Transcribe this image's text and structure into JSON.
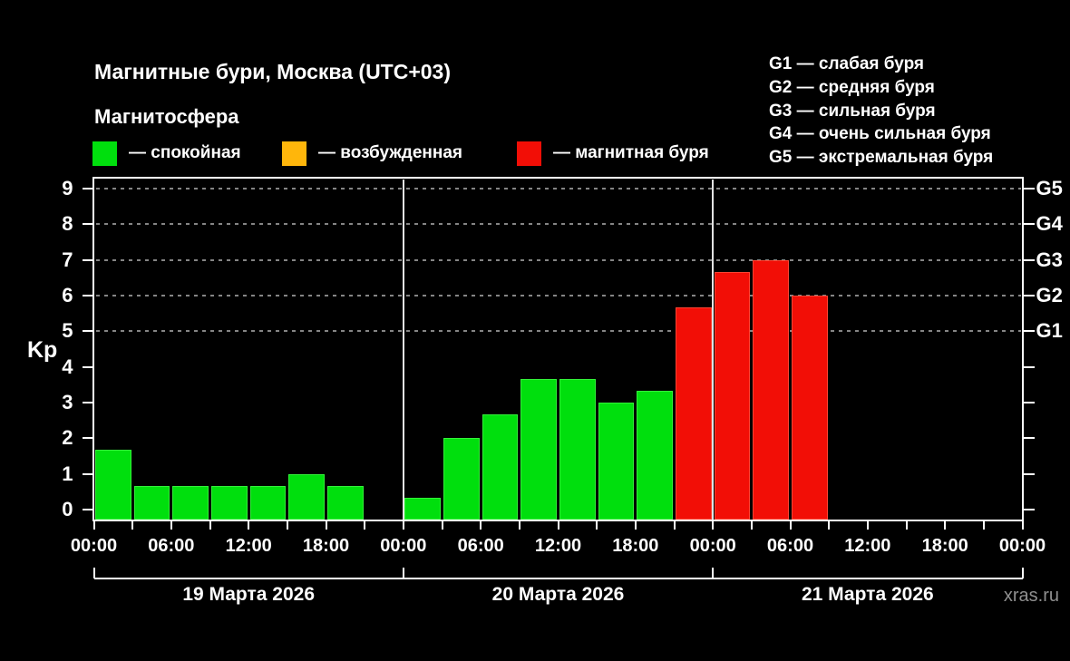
{
  "header": {
    "title": "Магнитные бури, Москва (UTC+03)",
    "subtitle": "Магнитосфера",
    "legend": [
      {
        "name": "quiet",
        "label": "— спокойная",
        "color": "#00DF0D"
      },
      {
        "name": "excited",
        "label": "— возбужденная",
        "color": "#FFB60B"
      },
      {
        "name": "storm",
        "label": "— магнитная буря",
        "color": "#F20E06"
      }
    ],
    "g_scale_legend": [
      "G1 — слабая буря",
      "G2 — средняя буря",
      "G3 — сильная буря",
      "G4 — очень сильная буря",
      "G5 — экстремальная буря"
    ]
  },
  "watermark": "xras.ru",
  "chart_data": {
    "type": "bar",
    "title": "Магнитные бури, Москва (UTC+03)",
    "ylabel": "Kp",
    "ylim": [
      0,
      9
    ],
    "yticks": [
      0,
      1,
      2,
      3,
      4,
      5,
      6,
      7,
      8,
      9
    ],
    "gridlines_at": [
      5,
      6,
      7,
      8,
      9
    ],
    "grid": "dashed horizontal at storm levels only",
    "legend_position": "top",
    "right_axis": [
      {
        "label": "G1",
        "kp": 5
      },
      {
        "label": "G2",
        "kp": 6
      },
      {
        "label": "G3",
        "kp": 7
      },
      {
        "label": "G4",
        "kp": 8
      },
      {
        "label": "G5",
        "kp": 9
      }
    ],
    "x_tick_labels_6h": [
      "00:00",
      "06:00",
      "12:00",
      "18:00",
      "00:00",
      "06:00",
      "12:00",
      "18:00",
      "00:00",
      "06:00",
      "12:00",
      "18:00",
      "00:00"
    ],
    "hours_per_bar": 3,
    "days": [
      {
        "date": "19 Марта 2026",
        "values": [
          1.67,
          0.67,
          0.67,
          0.67,
          0.67,
          1.0,
          0.67,
          null
        ]
      },
      {
        "date": "20 Марта 2026",
        "values": [
          0.33,
          2.0,
          2.67,
          3.67,
          3.67,
          3.0,
          3.33,
          5.67
        ]
      },
      {
        "date": "21 Марта 2026",
        "values": [
          6.67,
          7.0,
          6.0,
          null,
          null,
          null,
          null,
          null
        ]
      }
    ],
    "colors": {
      "quiet": "#00DF0D",
      "excited": "#FFB60B",
      "storm": "#F20E06"
    },
    "color_rule": {
      "quiet_max_kp": 4.33,
      "excited_max_kp": 5.33
    }
  }
}
